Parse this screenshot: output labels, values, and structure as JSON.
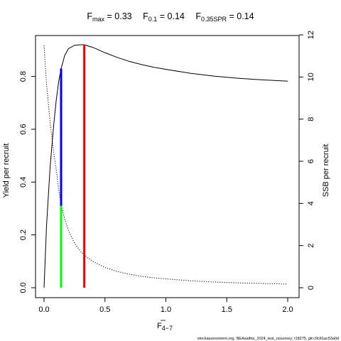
{
  "chart_data": {
    "type": "line",
    "title": {
      "fmax_label": "F",
      "fmax_sub": "max",
      "fmax_value": " = 0.33",
      "f01_label": "F",
      "f01_sub": "0.1",
      "f01_value": " = 0.14",
      "fspr_label": "F",
      "fspr_sub": "0.35SPR",
      "fspr_value": " = 0.14"
    },
    "xlabel": {
      "main": "F",
      "sub": "4−7"
    },
    "ylabel_left": "Yield per recruit",
    "ylabel_right": "SSB per recruit",
    "xlim": [
      0,
      2
    ],
    "ylim_left": [
      0,
      0.92
    ],
    "ylim_right": [
      0,
      11.8
    ],
    "x_ticks": [
      0,
      0.5,
      1,
      1.5,
      2
    ],
    "x_tick_labels": [
      "0.0",
      "0.5",
      "1.0",
      "1.5",
      "2.0"
    ],
    "y_left_ticks": [
      0,
      0.2,
      0.4,
      0.6,
      0.8
    ],
    "y_left_tick_labels": [
      "0.0",
      "0.2",
      "0.4",
      "0.6",
      "0.8"
    ],
    "y_right_ticks": [
      0,
      2,
      4,
      6,
      8,
      10,
      12
    ],
    "y_right_tick_labels": [
      "0",
      "2",
      "4",
      "6",
      "8",
      "10",
      "12"
    ],
    "series": [
      {
        "axis": "left",
        "style": "solid",
        "color": "#000000",
        "x": [
          0,
          0.02,
          0.05,
          0.08,
          0.1,
          0.12,
          0.14,
          0.17,
          0.2,
          0.25,
          0.3,
          0.33,
          0.4,
          0.5,
          0.6,
          0.7,
          0.8,
          0.9,
          1.0,
          1.2,
          1.4,
          1.6,
          1.8,
          2.0
        ],
        "y": [
          0,
          0.23,
          0.46,
          0.62,
          0.71,
          0.78,
          0.83,
          0.88,
          0.905,
          0.918,
          0.92,
          0.92,
          0.91,
          0.89,
          0.872,
          0.857,
          0.845,
          0.835,
          0.827,
          0.812,
          0.801,
          0.793,
          0.787,
          0.782
        ]
      },
      {
        "axis": "right",
        "style": "dotted",
        "color": "#000000",
        "x": [
          0,
          0.02,
          0.05,
          0.08,
          0.1,
          0.12,
          0.14,
          0.17,
          0.2,
          0.25,
          0.3,
          0.33,
          0.4,
          0.5,
          0.6,
          0.7,
          0.8,
          0.9,
          1.0,
          1.2,
          1.4,
          1.6,
          1.8,
          2.0
        ],
        "y": [
          11.5,
          9.7,
          7.85,
          6.4,
          5.6,
          4.65,
          3.95,
          3.25,
          2.72,
          2.12,
          1.72,
          1.55,
          1.25,
          0.96,
          0.77,
          0.64,
          0.54,
          0.47,
          0.42,
          0.33,
          0.27,
          0.23,
          0.2,
          0.17
        ]
      }
    ],
    "reference_lines": [
      {
        "name": "Fmax",
        "x": 0.33,
        "y_from": 0,
        "y_to": 0.92,
        "color": "#ff0000"
      },
      {
        "name": "F0.1",
        "x": 0.14,
        "y_from": 0.31,
        "y_to": 0.83,
        "color": "#0000ff"
      },
      {
        "name": "F0.35SPR",
        "x": 0.14,
        "y_from": 0,
        "y_to": 0.31,
        "color": "#00ff00"
      }
    ],
    "footer": "stockassessment.org, NEAsaithe_2024_test_nosurvey, r18275, git:c9c81ac53a0d"
  }
}
